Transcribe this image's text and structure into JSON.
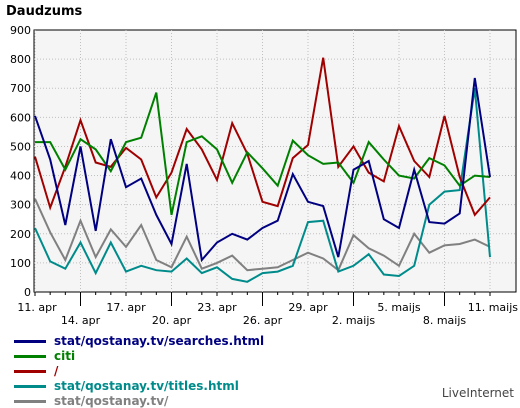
{
  "chart_data": {
    "type": "line",
    "title": "Daudzums",
    "ylim": [
      0,
      900
    ],
    "y_ticks": [
      0,
      100,
      200,
      300,
      400,
      500,
      600,
      700,
      800,
      900
    ],
    "x_tick_labels": [
      "11. apr",
      "14. apr",
      "17. apr",
      "20. apr",
      "23. apr",
      "26. apr",
      "29. apr",
      "2. maijs",
      "5. maijs",
      "8. maijs",
      "11. maijs"
    ],
    "grid": true,
    "legend_position": "bottom-left",
    "series": [
      {
        "name": "stat/qostanay.tv/searches.html",
        "color": "#000080",
        "values": [
          605,
          455,
          230,
          500,
          210,
          525,
          360,
          390,
          265,
          165,
          440,
          110,
          170,
          200,
          180,
          220,
          245,
          405,
          310,
          295,
          120,
          420,
          450,
          250,
          220,
          420,
          240,
          235,
          270,
          735,
          395
        ]
      },
      {
        "name": "citi",
        "color": "#008000",
        "values": [
          515,
          515,
          420,
          525,
          490,
          415,
          515,
          530,
          685,
          265,
          515,
          535,
          490,
          375,
          480,
          425,
          365,
          520,
          470,
          440,
          445,
          375,
          515,
          455,
          400,
          390,
          460,
          435,
          365,
          400,
          395
        ]
      },
      {
        "name": "/",
        "color": "#a00000",
        "values": [
          465,
          290,
          430,
          590,
          445,
          430,
          495,
          455,
          325,
          410,
          560,
          490,
          385,
          580,
          475,
          310,
          295,
          460,
          505,
          805,
          430,
          500,
          410,
          380,
          570,
          450,
          395,
          605,
          395,
          265,
          325
        ]
      },
      {
        "name": "stat/qostanay.tv/titles.html",
        "color": "#008b8b",
        "values": [
          220,
          105,
          80,
          170,
          65,
          170,
          70,
          90,
          75,
          70,
          115,
          65,
          85,
          45,
          35,
          65,
          70,
          90,
          240,
          245,
          70,
          90,
          130,
          60,
          55,
          90,
          300,
          345,
          350,
          700,
          120
        ]
      },
      {
        "name": "stat/qostanay.tv/",
        "color": "#808080",
        "values": [
          320,
          205,
          110,
          245,
          120,
          215,
          155,
          230,
          110,
          85,
          190,
          80,
          100,
          125,
          75,
          80,
          85,
          110,
          135,
          115,
          75,
          195,
          150,
          125,
          90,
          200,
          135,
          160,
          165,
          180,
          155
        ]
      }
    ]
  },
  "credit": "LiveInternet"
}
